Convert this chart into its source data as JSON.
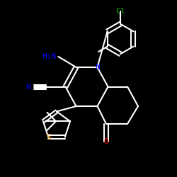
{
  "background": "#000000",
  "atom_colors": {
    "C": "#ffffff",
    "N": "#0000ff",
    "O": "#ff0000",
    "S": "#ffa500",
    "Cl": "#00cc00",
    "H": "#ffffff"
  },
  "bond_color": "#ffffff",
  "bond_width": 1.5,
  "figsize": [
    2.5,
    2.5
  ],
  "dpi": 100
}
